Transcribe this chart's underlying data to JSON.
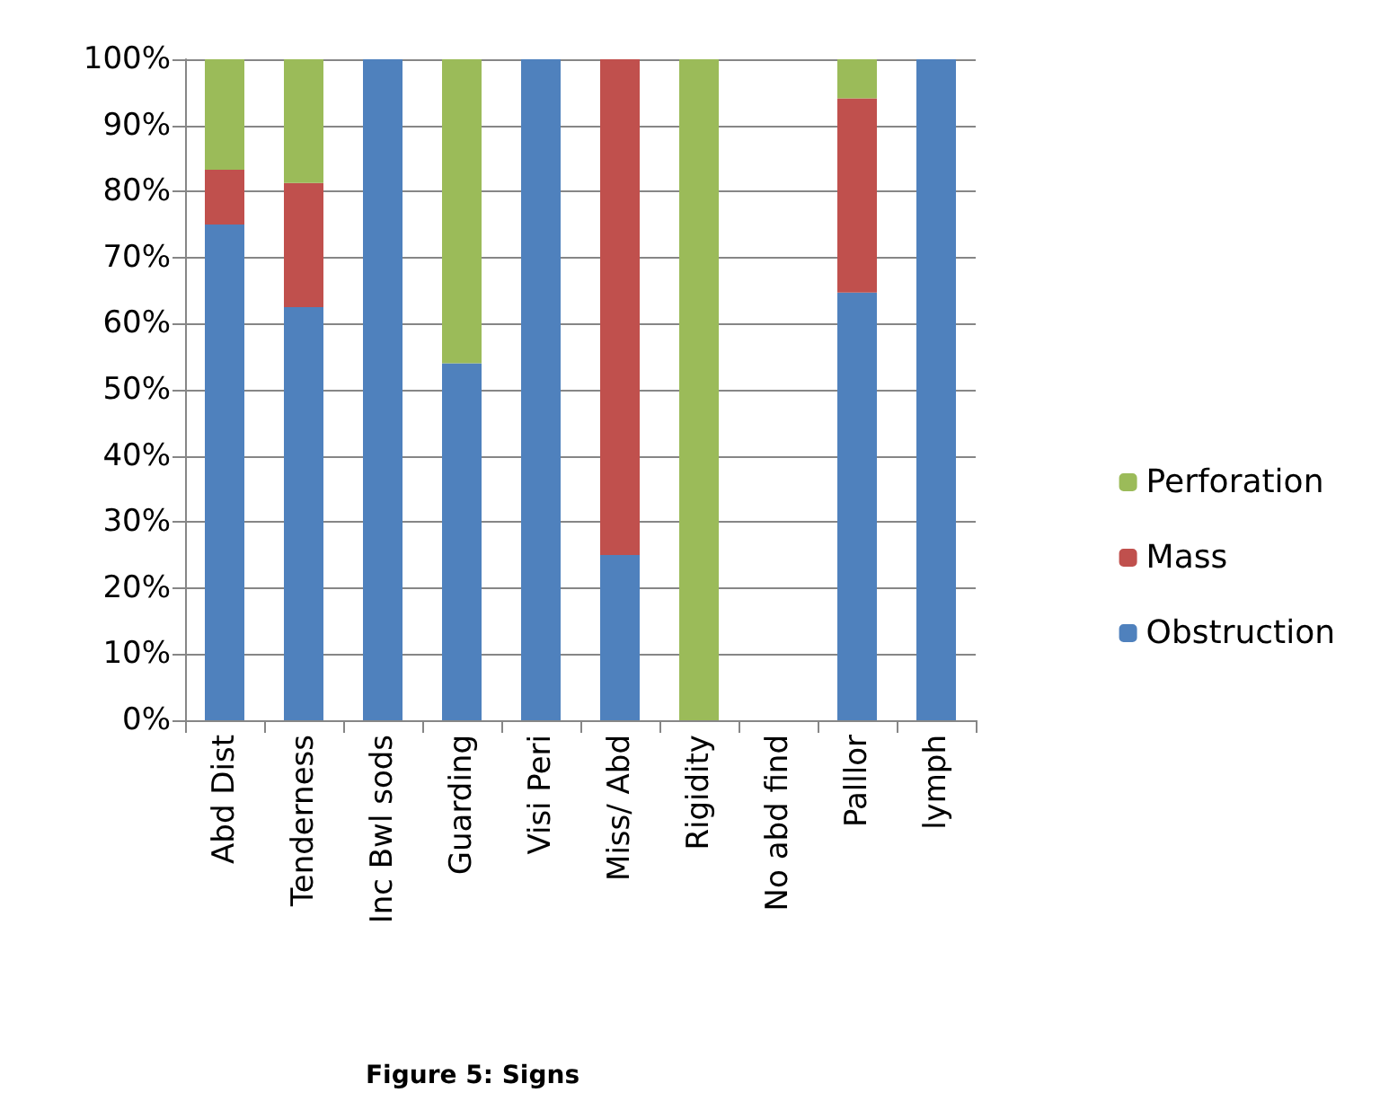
{
  "chart_data": {
    "type": "bar",
    "title": "Figure 5: Signs",
    "stacked": true,
    "categories": [
      "Abd Dist",
      "Tenderness",
      "Inc Bwl sods",
      "Guarding",
      "Visi Peri",
      "Miss/ Abd",
      "Rigidity",
      "No abd find",
      "Palllor",
      "lymph"
    ],
    "series": [
      {
        "name": "Obstruction",
        "color": "#4f81bd",
        "values": [
          75,
          62.5,
          100,
          54,
          100,
          25,
          0,
          null,
          64.7,
          100
        ]
      },
      {
        "name": "Mass",
        "color": "#c0504d",
        "values": [
          8.3,
          18.8,
          0,
          0,
          0,
          75,
          0,
          null,
          29.4,
          0
        ]
      },
      {
        "name": "Perforation",
        "color": "#9bbb59",
        "values": [
          16.7,
          18.7,
          0,
          46,
          0,
          0,
          100,
          null,
          5.9,
          0
        ]
      }
    ],
    "ylim": [
      0,
      100
    ],
    "yticks": [
      {
        "value": 0,
        "label": "0%"
      },
      {
        "value": 10,
        "label": "10%"
      },
      {
        "value": 20,
        "label": "20%"
      },
      {
        "value": 30,
        "label": "30%"
      },
      {
        "value": 40,
        "label": "40%"
      },
      {
        "value": 50,
        "label": "50%"
      },
      {
        "value": 60,
        "label": "60%"
      },
      {
        "value": 70,
        "label": "70%"
      },
      {
        "value": 80,
        "label": "80%"
      },
      {
        "value": 90,
        "label": "90%"
      },
      {
        "value": 100,
        "label": "100%"
      }
    ],
    "grid": "y",
    "legend": "right"
  }
}
